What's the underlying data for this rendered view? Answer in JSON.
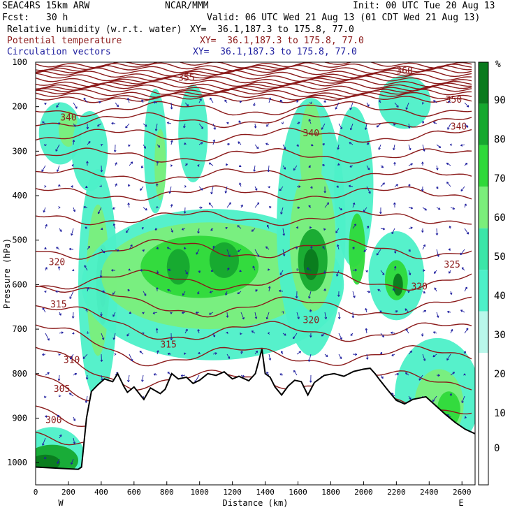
{
  "header": {
    "model": "SEAC4RS 15km ARW",
    "org": "NCAR/MMM",
    "init": "Init: 00 UTC Tue 20 Aug 13",
    "fcst_label": "Fcst:",
    "fcst_value": "30 h",
    "valid": "Valid: 06 UTC Wed 21 Aug 13 (01 CDT Wed 21 Aug 13)",
    "fields": [
      {
        "name": "Relative humidity (w.r.t. water)",
        "xy": "XY=  36.1,187.3 to 175.8, 77.0",
        "color": "#000000"
      },
      {
        "name": "Potential temperature",
        "xy": "XY=  36.1,187.3 to 175.8, 77.0",
        "color": "#8b1a1a"
      },
      {
        "name": "Circulation vectors",
        "xy": "XY=  36.1,187.3 to 175.8, 77.0",
        "color": "#1f1f9f"
      }
    ]
  },
  "chart_data": {
    "type": "heatmap",
    "title": "",
    "xlabel": "Distance (km)",
    "ylabel": "Pressure (hPa)",
    "xlim": [
      0,
      2680
    ],
    "ylim": [
      1050,
      100
    ],
    "x_ticks": [
      "0",
      "200",
      "400",
      "600",
      "800",
      "1000",
      "1200",
      "1400",
      "1600",
      "1800",
      "2000",
      "2200",
      "2400",
      "2600"
    ],
    "y_ticks": [
      "100",
      "200",
      "300",
      "400",
      "500",
      "600",
      "700",
      "800",
      "900",
      "1000"
    ],
    "x_end_labels": {
      "left": "W",
      "right": "E"
    },
    "colorbar": {
      "unit": "%",
      "labels": [
        "90",
        "80",
        "70",
        "60",
        "50",
        "40",
        "30",
        "20",
        "10",
        "0"
      ],
      "bands": [
        {
          "range": [
            90,
            100
          ],
          "color": "#0a7a1e"
        },
        {
          "range": [
            80,
            90
          ],
          "color": "#16a82f"
        },
        {
          "range": [
            70,
            80
          ],
          "color": "#2fd93a"
        },
        {
          "range": [
            60,
            70
          ],
          "color": "#7bee7b"
        },
        {
          "range": [
            50,
            60
          ],
          "color": "#3be6a8"
        },
        {
          "range": [
            40,
            50
          ],
          "color": "#4df0c8"
        },
        {
          "range": [
            30,
            40
          ],
          "color": "#b9f7ea"
        },
        {
          "range": [
            0,
            30
          ],
          "color": "#ffffff"
        }
      ]
    },
    "theta_labels": [
      {
        "text": "360",
        "x": 2250,
        "p": 120
      },
      {
        "text": "355",
        "x": 920,
        "p": 135
      },
      {
        "text": "350",
        "x": 2550,
        "p": 185
      },
      {
        "text": "340",
        "x": 200,
        "p": 225
      },
      {
        "text": "340",
        "x": 1680,
        "p": 260
      },
      {
        "text": "340",
        "x": 2580,
        "p": 245
      },
      {
        "text": "325",
        "x": 2540,
        "p": 555
      },
      {
        "text": "320",
        "x": 130,
        "p": 550
      },
      {
        "text": "320",
        "x": 2340,
        "p": 605
      },
      {
        "text": "320",
        "x": 1680,
        "p": 680
      },
      {
        "text": "315",
        "x": 140,
        "p": 645
      },
      {
        "text": "315",
        "x": 810,
        "p": 735
      },
      {
        "text": "310",
        "x": 220,
        "p": 770
      },
      {
        "text": "305",
        "x": 160,
        "p": 835
      },
      {
        "text": "300",
        "x": 110,
        "p": 905
      }
    ],
    "terrain": [
      [
        0,
        1010
      ],
      [
        260,
        1015
      ],
      [
        280,
        1010
      ],
      [
        310,
        900
      ],
      [
        340,
        840
      ],
      [
        380,
        825
      ],
      [
        420,
        812
      ],
      [
        470,
        818
      ],
      [
        500,
        800
      ],
      [
        540,
        830
      ],
      [
        560,
        842
      ],
      [
        600,
        830
      ],
      [
        660,
        858
      ],
      [
        700,
        832
      ],
      [
        760,
        845
      ],
      [
        790,
        835
      ],
      [
        830,
        800
      ],
      [
        870,
        812
      ],
      [
        920,
        808
      ],
      [
        960,
        822
      ],
      [
        1000,
        815
      ],
      [
        1050,
        800
      ],
      [
        1100,
        804
      ],
      [
        1150,
        796
      ],
      [
        1200,
        812
      ],
      [
        1240,
        806
      ],
      [
        1300,
        816
      ],
      [
        1340,
        800
      ],
      [
        1380,
        745
      ],
      [
        1400,
        800
      ],
      [
        1430,
        808
      ],
      [
        1460,
        830
      ],
      [
        1500,
        848
      ],
      [
        1540,
        828
      ],
      [
        1580,
        815
      ],
      [
        1620,
        818
      ],
      [
        1660,
        848
      ],
      [
        1700,
        820
      ],
      [
        1760,
        804
      ],
      [
        1820,
        800
      ],
      [
        1880,
        806
      ],
      [
        1940,
        795
      ],
      [
        2000,
        790
      ],
      [
        2040,
        788
      ],
      [
        2070,
        800
      ],
      [
        2100,
        815
      ],
      [
        2150,
        838
      ],
      [
        2200,
        860
      ],
      [
        2250,
        868
      ],
      [
        2300,
        858
      ],
      [
        2380,
        852
      ],
      [
        2440,
        872
      ],
      [
        2500,
        892
      ],
      [
        2560,
        910
      ],
      [
        2620,
        925
      ],
      [
        2680,
        935
      ]
    ],
    "rh_blobs": [
      {
        "cx": 380,
        "cy": 600,
        "rx": 120,
        "ry": 260,
        "band": 40
      },
      {
        "cx": 380,
        "cy": 590,
        "rx": 70,
        "ry": 170,
        "band": 60
      },
      {
        "cx": 410,
        "cy": 600,
        "rx": 40,
        "ry": 90,
        "band": 80
      },
      {
        "cx": 410,
        "cy": 610,
        "rx": 20,
        "ry": 40,
        "band": 90
      },
      {
        "cx": 150,
        "cy": 260,
        "rx": 130,
        "ry": 70,
        "band": 40
      },
      {
        "cx": 200,
        "cy": 250,
        "rx": 60,
        "ry": 40,
        "band": 60
      },
      {
        "cx": 330,
        "cy": 300,
        "rx": 110,
        "ry": 90,
        "band": 40
      },
      {
        "cx": 730,
        "cy": 300,
        "rx": 70,
        "ry": 140,
        "band": 40
      },
      {
        "cx": 760,
        "cy": 330,
        "rx": 35,
        "ry": 80,
        "band": 60
      },
      {
        "cx": 960,
        "cy": 260,
        "rx": 90,
        "ry": 110,
        "band": 40
      },
      {
        "cx": 1080,
        "cy": 600,
        "rx": 800,
        "ry": 170,
        "band": 40
      },
      {
        "cx": 1060,
        "cy": 580,
        "rx": 660,
        "ry": 120,
        "band": 60
      },
      {
        "cx": 1000,
        "cy": 560,
        "rx": 360,
        "ry": 70,
        "band": 70
      },
      {
        "cx": 1150,
        "cy": 545,
        "rx": 90,
        "ry": 40,
        "band": 80
      },
      {
        "cx": 870,
        "cy": 560,
        "rx": 70,
        "ry": 40,
        "band": 80
      },
      {
        "cx": 1680,
        "cy": 470,
        "rx": 210,
        "ry": 290,
        "band": 40
      },
      {
        "cx": 1690,
        "cy": 500,
        "rx": 140,
        "ry": 160,
        "band": 60
      },
      {
        "cx": 1690,
        "cy": 545,
        "rx": 90,
        "ry": 70,
        "band": 80
      },
      {
        "cx": 1680,
        "cy": 555,
        "rx": 45,
        "ry": 35,
        "band": 90
      },
      {
        "cx": 1680,
        "cy": 300,
        "rx": 70,
        "ry": 110,
        "band": 60
      },
      {
        "cx": 1940,
        "cy": 380,
        "rx": 120,
        "ry": 180,
        "band": 40
      },
      {
        "cx": 1960,
        "cy": 520,
        "rx": 50,
        "ry": 80,
        "band": 70
      },
      {
        "cx": 2200,
        "cy": 580,
        "rx": 170,
        "ry": 100,
        "band": 40
      },
      {
        "cx": 2200,
        "cy": 590,
        "rx": 70,
        "ry": 45,
        "band": 70
      },
      {
        "cx": 2210,
        "cy": 600,
        "rx": 30,
        "ry": 25,
        "band": 90
      },
      {
        "cx": 2250,
        "cy": 190,
        "rx": 160,
        "ry": 60,
        "band": 40
      },
      {
        "cx": 2450,
        "cy": 850,
        "rx": 260,
        "ry": 130,
        "band": 40
      },
      {
        "cx": 2460,
        "cy": 870,
        "rx": 150,
        "ry": 80,
        "band": 60
      },
      {
        "cx": 2520,
        "cy": 880,
        "rx": 70,
        "ry": 40,
        "band": 70
      },
      {
        "cx": 100,
        "cy": 990,
        "rx": 200,
        "ry": 70,
        "band": 40
      },
      {
        "cx": 100,
        "cy": 995,
        "rx": 160,
        "ry": 35,
        "band": 80
      },
      {
        "cx": 60,
        "cy": 1000,
        "rx": 90,
        "ry": 18,
        "band": 90
      }
    ]
  }
}
